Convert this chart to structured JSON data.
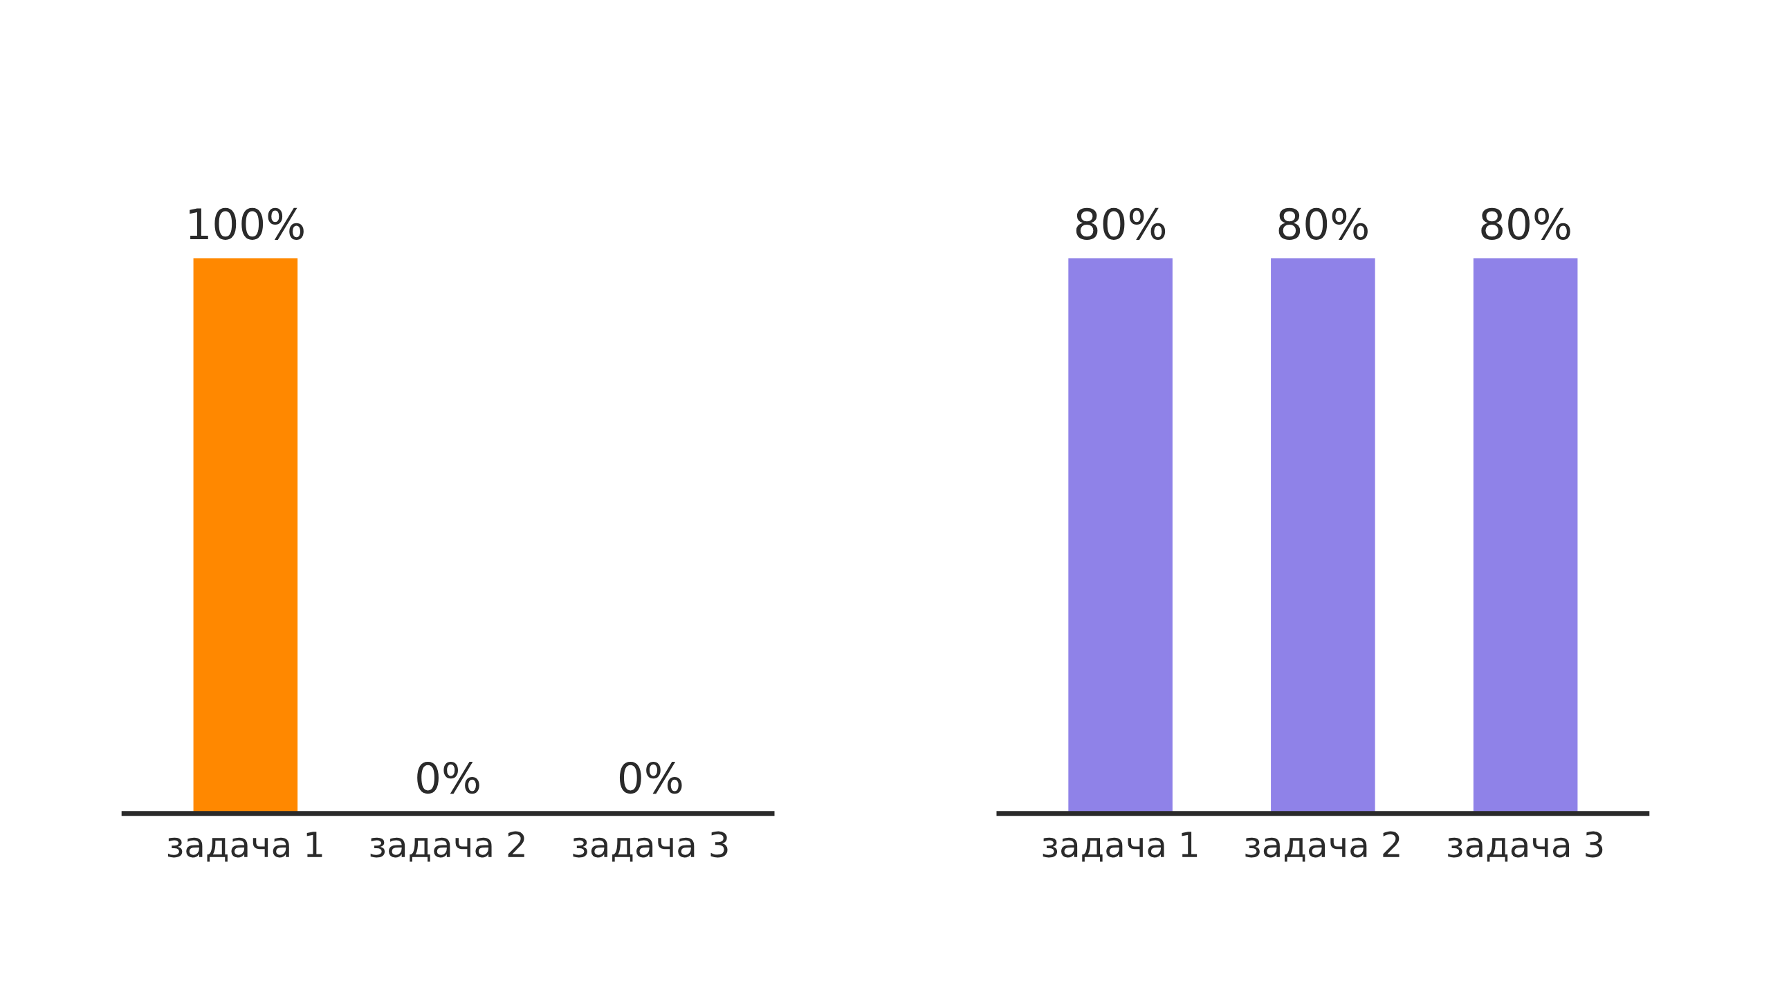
{
  "chart_data": [
    {
      "type": "bar",
      "categories": [
        "задача 1",
        "задача 2",
        "задача 3"
      ],
      "values": [
        100,
        0,
        0
      ],
      "value_labels": [
        "100%",
        "0%",
        "0%"
      ],
      "color": "#ff8800",
      "grid": false,
      "tick_labels": "x"
    },
    {
      "type": "bar",
      "categories": [
        "задача 1",
        "задача 2",
        "задача 3"
      ],
      "values": [
        80,
        80,
        80
      ],
      "value_labels": [
        "80%",
        "80%",
        "80%"
      ],
      "color": "#8f82e8",
      "grid": false,
      "tick_labels": "x"
    }
  ]
}
